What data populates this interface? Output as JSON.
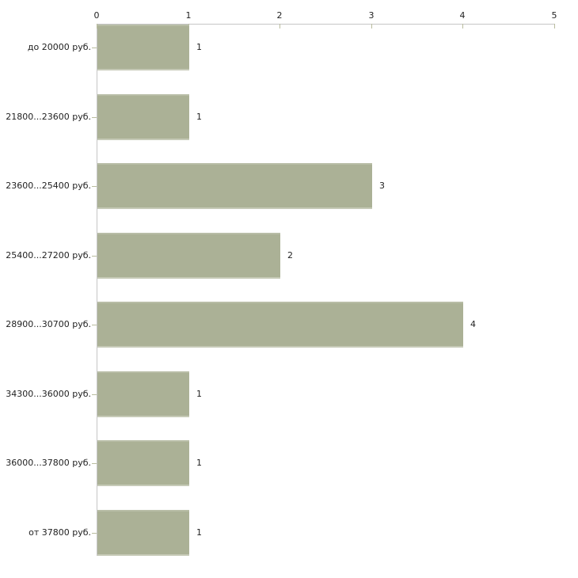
{
  "chart_data": {
    "type": "bar",
    "orientation": "horizontal",
    "title": "",
    "xlabel": "",
    "ylabel": "",
    "categories": [
      "до 20000 руб.",
      "21800...23600 руб.",
      "23600...25400 руб.",
      "25400...27200 руб.",
      "28900...30700 руб.",
      "34300...36000 руб.",
      "36000...37800 руб.",
      "от 37800 руб."
    ],
    "values": [
      1,
      1,
      3,
      2,
      4,
      1,
      1,
      1
    ],
    "value_labels": [
      "1",
      "1",
      "3",
      "2",
      "4",
      "1",
      "1",
      "1"
    ],
    "xlim": [
      0,
      5
    ],
    "x_ticks": [
      "0",
      "1",
      "2",
      "3",
      "4",
      "5"
    ],
    "x_axis_position": "top",
    "grid": false,
    "legend_position": "none",
    "colors": {
      "bar": "#abb196",
      "axis": "#c6c6c6",
      "tick": "#b9bc9e",
      "text": "#222222",
      "background": "#ffffff"
    }
  }
}
